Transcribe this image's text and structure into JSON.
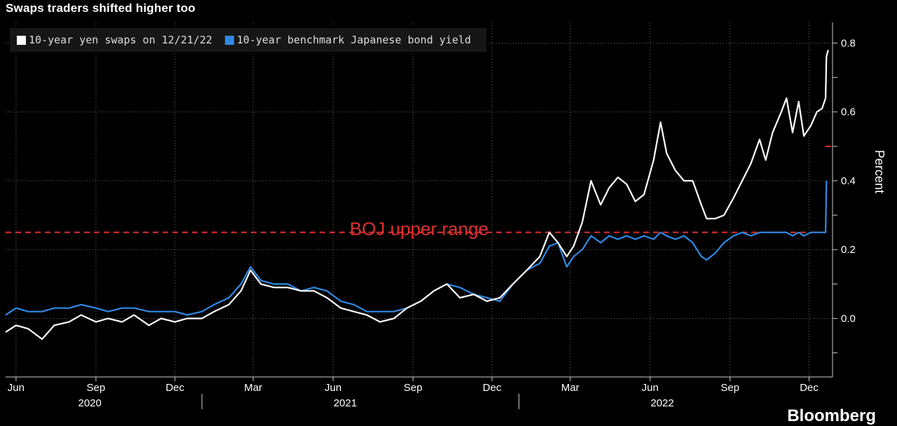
{
  "title": "Swaps traders shifted higher too",
  "logo": "Bloomberg",
  "chart_data": {
    "type": "line",
    "title": "Swaps traders shifted higher too",
    "ylabel": "Percent",
    "ylim": [
      -0.17,
      0.86
    ],
    "y_ticks": [
      0.0,
      0.2,
      0.4,
      0.6,
      0.8
    ],
    "y_tick_labels": [
      "0.0",
      "0.2",
      "0.4",
      "0.6",
      "0.8"
    ],
    "x_range": [
      "2020-05-20",
      "2022-12-28"
    ],
    "x_ticks": [
      {
        "date": "2020-06-01",
        "label": "Jun"
      },
      {
        "date": "2020-09-01",
        "label": "Sep"
      },
      {
        "date": "2020-12-01",
        "label": "Dec"
      },
      {
        "date": "2021-03-01",
        "label": "Mar"
      },
      {
        "date": "2021-06-01",
        "label": "Jun"
      },
      {
        "date": "2021-09-01",
        "label": "Sep"
      },
      {
        "date": "2021-12-01",
        "label": "Dec"
      },
      {
        "date": "2022-03-01",
        "label": "Mar"
      },
      {
        "date": "2022-06-01",
        "label": "Jun"
      },
      {
        "date": "2022-09-01",
        "label": "Sep"
      },
      {
        "date": "2022-12-01",
        "label": "Dec"
      }
    ],
    "year_labels": [
      {
        "label": "2020",
        "date": "2020-08-25"
      },
      {
        "label": "2021",
        "date": "2021-06-15"
      },
      {
        "label": "2022",
        "date": "2022-06-15"
      }
    ],
    "year_separators": [
      "2021-01-01",
      "2022-01-01"
    ],
    "grid": true,
    "legend_position": "top-left",
    "series": [
      {
        "name": "10-year yen swaps on 12/21/22",
        "color": "#ffffff",
        "points": [
          [
            "2020-05-20",
            -0.04
          ],
          [
            "2020-06-01",
            -0.02
          ],
          [
            "2020-06-15",
            -0.03
          ],
          [
            "2020-07-01",
            -0.06
          ],
          [
            "2020-07-15",
            -0.02
          ],
          [
            "2020-08-01",
            -0.01
          ],
          [
            "2020-08-15",
            0.01
          ],
          [
            "2020-09-01",
            -0.01
          ],
          [
            "2020-09-15",
            0.0
          ],
          [
            "2020-10-01",
            -0.01
          ],
          [
            "2020-10-15",
            0.01
          ],
          [
            "2020-11-01",
            -0.02
          ],
          [
            "2020-11-15",
            0.0
          ],
          [
            "2020-12-01",
            -0.01
          ],
          [
            "2020-12-15",
            0.0
          ],
          [
            "2021-01-01",
            0.0
          ],
          [
            "2021-01-15",
            0.02
          ],
          [
            "2021-02-01",
            0.04
          ],
          [
            "2021-02-15",
            0.08
          ],
          [
            "2021-02-26",
            0.14
          ],
          [
            "2021-03-10",
            0.1
          ],
          [
            "2021-03-25",
            0.09
          ],
          [
            "2021-04-10",
            0.09
          ],
          [
            "2021-04-25",
            0.08
          ],
          [
            "2021-05-10",
            0.08
          ],
          [
            "2021-05-25",
            0.06
          ],
          [
            "2021-06-10",
            0.03
          ],
          [
            "2021-06-25",
            0.02
          ],
          [
            "2021-07-10",
            0.01
          ],
          [
            "2021-07-25",
            -0.01
          ],
          [
            "2021-08-10",
            0.0
          ],
          [
            "2021-08-25",
            0.03
          ],
          [
            "2021-09-10",
            0.05
          ],
          [
            "2021-09-25",
            0.08
          ],
          [
            "2021-10-10",
            0.1
          ],
          [
            "2021-10-25",
            0.06
          ],
          [
            "2021-11-10",
            0.07
          ],
          [
            "2021-11-25",
            0.05
          ],
          [
            "2021-12-10",
            0.06
          ],
          [
            "2021-12-25",
            0.1
          ],
          [
            "2022-01-10",
            0.14
          ],
          [
            "2022-01-25",
            0.18
          ],
          [
            "2022-02-05",
            0.25
          ],
          [
            "2022-02-15",
            0.22
          ],
          [
            "2022-02-25",
            0.18
          ],
          [
            "2022-03-05",
            0.21
          ],
          [
            "2022-03-15",
            0.28
          ],
          [
            "2022-03-25",
            0.4
          ],
          [
            "2022-04-05",
            0.33
          ],
          [
            "2022-04-15",
            0.38
          ],
          [
            "2022-04-25",
            0.41
          ],
          [
            "2022-05-05",
            0.39
          ],
          [
            "2022-05-15",
            0.34
          ],
          [
            "2022-05-25",
            0.36
          ],
          [
            "2022-06-05",
            0.46
          ],
          [
            "2022-06-13",
            0.57
          ],
          [
            "2022-06-20",
            0.48
          ],
          [
            "2022-06-30",
            0.43
          ],
          [
            "2022-07-10",
            0.4
          ],
          [
            "2022-07-20",
            0.4
          ],
          [
            "2022-07-30",
            0.33
          ],
          [
            "2022-08-05",
            0.29
          ],
          [
            "2022-08-15",
            0.29
          ],
          [
            "2022-08-25",
            0.3
          ],
          [
            "2022-09-05",
            0.35
          ],
          [
            "2022-09-15",
            0.4
          ],
          [
            "2022-09-25",
            0.45
          ],
          [
            "2022-10-05",
            0.52
          ],
          [
            "2022-10-12",
            0.46
          ],
          [
            "2022-10-20",
            0.54
          ],
          [
            "2022-10-30",
            0.6
          ],
          [
            "2022-11-05",
            0.64
          ],
          [
            "2022-11-12",
            0.54
          ],
          [
            "2022-11-19",
            0.63
          ],
          [
            "2022-11-25",
            0.53
          ],
          [
            "2022-12-03",
            0.56
          ],
          [
            "2022-12-10",
            0.6
          ],
          [
            "2022-12-16",
            0.61
          ],
          [
            "2022-12-20",
            0.64
          ],
          [
            "2022-12-21",
            0.76
          ],
          [
            "2022-12-23",
            0.78
          ]
        ]
      },
      {
        "name": "10-year benchmark Japanese bond yield",
        "color": "#2f8ae6",
        "points": [
          [
            "2020-05-20",
            0.01
          ],
          [
            "2020-06-01",
            0.03
          ],
          [
            "2020-06-15",
            0.02
          ],
          [
            "2020-07-01",
            0.02
          ],
          [
            "2020-07-15",
            0.03
          ],
          [
            "2020-08-01",
            0.03
          ],
          [
            "2020-08-15",
            0.04
          ],
          [
            "2020-09-01",
            0.03
          ],
          [
            "2020-09-15",
            0.02
          ],
          [
            "2020-10-01",
            0.03
          ],
          [
            "2020-10-15",
            0.03
          ],
          [
            "2020-11-01",
            0.02
          ],
          [
            "2020-11-15",
            0.02
          ],
          [
            "2020-12-01",
            0.02
          ],
          [
            "2020-12-15",
            0.01
          ],
          [
            "2021-01-01",
            0.02
          ],
          [
            "2021-01-15",
            0.04
          ],
          [
            "2021-02-01",
            0.06
          ],
          [
            "2021-02-15",
            0.1
          ],
          [
            "2021-02-26",
            0.15
          ],
          [
            "2021-03-10",
            0.11
          ],
          [
            "2021-03-25",
            0.1
          ],
          [
            "2021-04-10",
            0.1
          ],
          [
            "2021-04-25",
            0.08
          ],
          [
            "2021-05-10",
            0.09
          ],
          [
            "2021-05-25",
            0.08
          ],
          [
            "2021-06-10",
            0.05
          ],
          [
            "2021-06-25",
            0.04
          ],
          [
            "2021-07-10",
            0.02
          ],
          [
            "2021-07-25",
            0.02
          ],
          [
            "2021-08-10",
            0.02
          ],
          [
            "2021-08-25",
            0.03
          ],
          [
            "2021-09-10",
            0.05
          ],
          [
            "2021-09-25",
            0.08
          ],
          [
            "2021-10-10",
            0.1
          ],
          [
            "2021-10-25",
            0.09
          ],
          [
            "2021-11-10",
            0.07
          ],
          [
            "2021-11-25",
            0.06
          ],
          [
            "2021-12-10",
            0.05
          ],
          [
            "2021-12-25",
            0.1
          ],
          [
            "2022-01-10",
            0.14
          ],
          [
            "2022-01-25",
            0.16
          ],
          [
            "2022-02-05",
            0.21
          ],
          [
            "2022-02-15",
            0.22
          ],
          [
            "2022-02-25",
            0.15
          ],
          [
            "2022-03-05",
            0.18
          ],
          [
            "2022-03-15",
            0.2
          ],
          [
            "2022-03-25",
            0.24
          ],
          [
            "2022-04-05",
            0.22
          ],
          [
            "2022-04-15",
            0.24
          ],
          [
            "2022-04-25",
            0.23
          ],
          [
            "2022-05-05",
            0.24
          ],
          [
            "2022-05-15",
            0.23
          ],
          [
            "2022-05-25",
            0.24
          ],
          [
            "2022-06-05",
            0.23
          ],
          [
            "2022-06-13",
            0.25
          ],
          [
            "2022-06-20",
            0.24
          ],
          [
            "2022-06-30",
            0.23
          ],
          [
            "2022-07-10",
            0.24
          ],
          [
            "2022-07-20",
            0.22
          ],
          [
            "2022-07-30",
            0.18
          ],
          [
            "2022-08-05",
            0.17
          ],
          [
            "2022-08-15",
            0.19
          ],
          [
            "2022-08-25",
            0.22
          ],
          [
            "2022-09-05",
            0.24
          ],
          [
            "2022-09-15",
            0.25
          ],
          [
            "2022-09-25",
            0.24
          ],
          [
            "2022-10-05",
            0.25
          ],
          [
            "2022-10-12",
            0.25
          ],
          [
            "2022-10-20",
            0.25
          ],
          [
            "2022-10-30",
            0.25
          ],
          [
            "2022-11-05",
            0.25
          ],
          [
            "2022-11-12",
            0.24
          ],
          [
            "2022-11-19",
            0.25
          ],
          [
            "2022-11-25",
            0.24
          ],
          [
            "2022-12-03",
            0.25
          ],
          [
            "2022-12-10",
            0.25
          ],
          [
            "2022-12-16",
            0.25
          ],
          [
            "2022-12-20",
            0.25
          ],
          [
            "2022-12-21",
            0.4
          ]
        ]
      }
    ],
    "reference_lines": [
      {
        "label": "BOJ upper range",
        "y": 0.25,
        "from": "2020-05-20",
        "to": "2022-12-20",
        "color": "#e0302f"
      },
      {
        "label": "",
        "y": 0.5,
        "from": "2022-12-20",
        "to": "2022-12-28",
        "color": "#e0302f"
      }
    ]
  }
}
